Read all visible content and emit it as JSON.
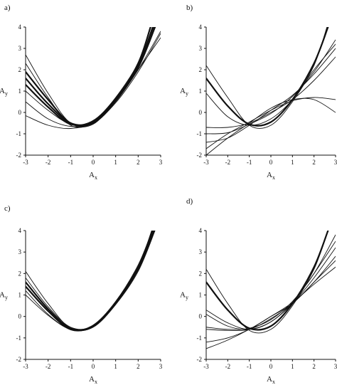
{
  "chart_data": [
    {
      "type": "line",
      "panel_label": "a)",
      "xlabel": "A",
      "xlabel_sub": "x",
      "ylabel": "A",
      "ylabel_sub": "y",
      "xlim": [
        -3,
        3
      ],
      "ylim": [
        -2,
        4
      ],
      "xticks": [
        "-3",
        "-2",
        "-1",
        "0",
        "1",
        "2",
        "3"
      ],
      "yticks": [
        "-2",
        "-1",
        "0",
        "1",
        "2",
        "3",
        "4"
      ],
      "curves": [
        {
          "bold": true,
          "points": [
            [
              -3,
              1.6
            ],
            [
              -2,
              0.4
            ],
            [
              -1,
              -0.5
            ],
            [
              0,
              -0.45
            ],
            [
              1,
              0.6
            ],
            [
              2,
              2.1
            ],
            [
              2.75,
              4.0
            ]
          ]
        },
        {
          "bold": true,
          "points": [
            [
              -3,
              1.3
            ],
            [
              -2,
              0.25
            ],
            [
              -1,
              -0.55
            ],
            [
              0,
              -0.4
            ],
            [
              1,
              0.65
            ],
            [
              2,
              2.2
            ],
            [
              2.65,
              4.0
            ]
          ]
        },
        {
          "bold": true,
          "points": [
            [
              -3,
              1.9
            ],
            [
              -2,
              0.6
            ],
            [
              -1,
              -0.5
            ],
            [
              0,
              -0.5
            ],
            [
              1,
              0.55
            ],
            [
              2,
              2.3
            ],
            [
              2.55,
              4.0
            ]
          ]
        },
        {
          "bold": false,
          "points": [
            [
              -3,
              2.7
            ],
            [
              -2,
              0.9
            ],
            [
              -1,
              -0.5
            ],
            [
              0,
              -0.55
            ],
            [
              1,
              0.6
            ],
            [
              2,
              2.2
            ],
            [
              2.7,
              4.0
            ]
          ]
        },
        {
          "bold": false,
          "points": [
            [
              -3,
              2.3
            ],
            [
              -2,
              0.7
            ],
            [
              -1,
              -0.6
            ],
            [
              0,
              -0.5
            ],
            [
              1,
              0.5
            ],
            [
              2,
              2.0
            ],
            [
              3,
              3.8
            ]
          ]
        },
        {
          "bold": false,
          "points": [
            [
              -3,
              0.5
            ],
            [
              -2,
              -0.3
            ],
            [
              -1,
              -0.65
            ],
            [
              0,
              -0.5
            ],
            [
              1,
              0.5
            ],
            [
              2,
              2.0
            ],
            [
              3,
              3.5
            ]
          ]
        },
        {
          "bold": false,
          "points": [
            [
              -3,
              -0.15
            ],
            [
              -2,
              -0.6
            ],
            [
              -1,
              -0.75
            ],
            [
              0,
              -0.45
            ],
            [
              1,
              0.7
            ],
            [
              2,
              2.3
            ],
            [
              2.7,
              4.0
            ]
          ]
        },
        {
          "bold": false,
          "points": [
            [
              -3,
              1.0
            ],
            [
              -2,
              0.1
            ],
            [
              -1,
              -0.55
            ],
            [
              0,
              -0.5
            ],
            [
              1,
              0.45
            ],
            [
              2,
              1.9
            ],
            [
              3,
              3.7
            ]
          ]
        }
      ]
    },
    {
      "type": "line",
      "panel_label": "b)",
      "xlabel": "A",
      "xlabel_sub": "x",
      "ylabel": "A",
      "ylabel_sub": "y",
      "xlim": [
        -3,
        3
      ],
      "ylim": [
        -2,
        4
      ],
      "xticks": [
        "-3",
        "-2",
        "-1",
        "0",
        "1",
        "2",
        "3"
      ],
      "yticks": [
        "-2",
        "-1",
        "0",
        "1",
        "2",
        "3",
        "4"
      ],
      "curves": [
        {
          "bold": true,
          "points": [
            [
              -3,
              1.6
            ],
            [
              -2,
              0.3
            ],
            [
              -1,
              -0.55
            ],
            [
              0,
              -0.45
            ],
            [
              1,
              0.6
            ],
            [
              2,
              2.3
            ],
            [
              2.65,
              4.0
            ]
          ]
        },
        {
          "bold": false,
          "points": [
            [
              -3,
              2.2
            ],
            [
              -2,
              0.7
            ],
            [
              -1,
              -0.6
            ],
            [
              0,
              -0.6
            ],
            [
              1,
              0.5
            ],
            [
              2,
              2.2
            ],
            [
              2.6,
              4.0
            ]
          ]
        },
        {
          "bold": false,
          "points": [
            [
              -3,
              0.9
            ],
            [
              -2,
              -0.2
            ],
            [
              -1,
              -0.6
            ],
            [
              0,
              -0.3
            ],
            [
              1,
              0.6
            ],
            [
              2,
              2.0
            ],
            [
              3,
              3.2
            ]
          ]
        },
        {
          "bold": false,
          "points": [
            [
              -3,
              -1.0
            ],
            [
              -2,
              -0.95
            ],
            [
              -1,
              -0.55
            ],
            [
              0,
              -0.05
            ],
            [
              1,
              0.75
            ],
            [
              2,
              1.9
            ],
            [
              3,
              3.4
            ]
          ]
        },
        {
          "bold": false,
          "points": [
            [
              -3,
              -1.4
            ],
            [
              -2,
              -1.2
            ],
            [
              -1,
              -0.6
            ],
            [
              0,
              0.1
            ],
            [
              1,
              0.8
            ],
            [
              2,
              1.8
            ],
            [
              3,
              3.0
            ]
          ]
        },
        {
          "bold": false,
          "points": [
            [
              -3,
              -1.7
            ],
            [
              -2,
              -1.0
            ],
            [
              -1,
              -0.45
            ],
            [
              0,
              0.1
            ],
            [
              1,
              0.55
            ],
            [
              2,
              0.7
            ],
            [
              3,
              0.6
            ]
          ]
        },
        {
          "bold": false,
          "points": [
            [
              -3,
              -2.0
            ],
            [
              -2,
              -1.2
            ],
            [
              -1,
              -0.5
            ],
            [
              0,
              0.2
            ],
            [
              1,
              0.6
            ],
            [
              2,
              0.6
            ],
            [
              3,
              0.0
            ]
          ]
        },
        {
          "bold": false,
          "points": [
            [
              -3,
              -0.7
            ],
            [
              -2,
              -0.7
            ],
            [
              -1,
              -0.5
            ],
            [
              0,
              0.0
            ],
            [
              1,
              0.6
            ],
            [
              2,
              1.5
            ],
            [
              3,
              2.6
            ]
          ]
        }
      ]
    },
    {
      "type": "line",
      "panel_label": "c)",
      "xlabel": "A",
      "xlabel_sub": "x",
      "ylabel": "A",
      "ylabel_sub": "y",
      "xlim": [
        -3,
        3
      ],
      "ylim": [
        -2,
        4
      ],
      "xticks": [
        "-3",
        "-2",
        "-1",
        "0",
        "1",
        "2",
        "3"
      ],
      "yticks": [
        "-2",
        "-1",
        "0",
        "1",
        "2",
        "3",
        "4"
      ],
      "curves": [
        {
          "bold": true,
          "points": [
            [
              -3,
              1.6
            ],
            [
              -2,
              0.35
            ],
            [
              -1,
              -0.55
            ],
            [
              0,
              -0.45
            ],
            [
              1,
              0.65
            ],
            [
              2,
              2.3
            ],
            [
              2.65,
              4.0
            ]
          ]
        },
        {
          "bold": true,
          "points": [
            [
              -3,
              1.4
            ],
            [
              -2,
              0.25
            ],
            [
              -1,
              -0.6
            ],
            [
              0,
              -0.45
            ],
            [
              1,
              0.6
            ],
            [
              2,
              2.2
            ],
            [
              2.72,
              4.0
            ]
          ]
        },
        {
          "bold": false,
          "points": [
            [
              -3,
              2.1
            ],
            [
              -2,
              0.6
            ],
            [
              -1,
              -0.55
            ],
            [
              0,
              -0.5
            ],
            [
              1,
              0.6
            ],
            [
              2,
              2.3
            ],
            [
              2.6,
              4.0
            ]
          ]
        },
        {
          "bold": false,
          "points": [
            [
              -3,
              1.2
            ],
            [
              -2,
              0.1
            ],
            [
              -1,
              -0.6
            ],
            [
              0,
              -0.4
            ],
            [
              1,
              0.7
            ],
            [
              2,
              2.4
            ],
            [
              2.62,
              4.0
            ]
          ]
        },
        {
          "bold": false,
          "points": [
            [
              -3,
              1.8
            ],
            [
              -2,
              0.45
            ],
            [
              -1,
              -0.5
            ],
            [
              0,
              -0.45
            ],
            [
              1,
              0.6
            ],
            [
              2,
              2.2
            ],
            [
              2.7,
              4.0
            ]
          ]
        },
        {
          "bold": false,
          "points": [
            [
              -3,
              1.0
            ],
            [
              -2,
              0.05
            ],
            [
              -1,
              -0.6
            ],
            [
              0,
              -0.5
            ],
            [
              1,
              0.55
            ],
            [
              2,
              2.1
            ],
            [
              2.75,
              4.0
            ]
          ]
        }
      ]
    },
    {
      "type": "line",
      "panel_label": "d)",
      "xlabel": "A",
      "xlabel_sub": "x",
      "ylabel": "A",
      "ylabel_sub": "y",
      "xlim": [
        -3,
        3
      ],
      "ylim": [
        -2,
        4
      ],
      "xticks": [
        "-3",
        "-2",
        "-1",
        "0",
        "1",
        "2",
        "3"
      ],
      "yticks": [
        "-2",
        "-1",
        "0",
        "1",
        "2",
        "3",
        "4"
      ],
      "curves": [
        {
          "bold": true,
          "points": [
            [
              -3,
              1.6
            ],
            [
              -2,
              0.3
            ],
            [
              -1,
              -0.55
            ],
            [
              0,
              -0.45
            ],
            [
              1,
              0.6
            ],
            [
              2,
              2.3
            ],
            [
              2.65,
              4.0
            ]
          ]
        },
        {
          "bold": false,
          "points": [
            [
              -3,
              2.2
            ],
            [
              -2,
              0.6
            ],
            [
              -1,
              -0.65
            ],
            [
              0,
              -0.6
            ],
            [
              1,
              0.5
            ],
            [
              2,
              2.2
            ],
            [
              2.65,
              4.0
            ]
          ]
        },
        {
          "bold": false,
          "points": [
            [
              -3,
              0.3
            ],
            [
              -2,
              -0.3
            ],
            [
              -1,
              -0.6
            ],
            [
              0,
              -0.25
            ],
            [
              1,
              0.65
            ],
            [
              2,
              2.0
            ],
            [
              3,
              3.5
            ]
          ]
        },
        {
          "bold": false,
          "points": [
            [
              -3,
              0.1
            ],
            [
              -2,
              -0.45
            ],
            [
              -1,
              -0.6
            ],
            [
              0,
              -0.25
            ],
            [
              1,
              0.6
            ],
            [
              2,
              1.8
            ],
            [
              3,
              3.2
            ]
          ]
        },
        {
          "bold": false,
          "points": [
            [
              -3,
              -0.5
            ],
            [
              -2,
              -0.6
            ],
            [
              -1,
              -0.55
            ],
            [
              0,
              -0.15
            ],
            [
              1,
              0.7
            ],
            [
              2,
              2.0
            ],
            [
              3,
              3.8
            ]
          ]
        },
        {
          "bold": false,
          "points": [
            [
              -3,
              -0.6
            ],
            [
              -2,
              -0.65
            ],
            [
              -1,
              -0.6
            ],
            [
              0,
              -0.1
            ],
            [
              1,
              0.6
            ],
            [
              2,
              1.6
            ],
            [
              3,
              2.8
            ]
          ]
        },
        {
          "bold": false,
          "points": [
            [
              -3,
              -1.2
            ],
            [
              -2,
              -1.0
            ],
            [
              -1,
              -0.6
            ],
            [
              0,
              0.0
            ],
            [
              1,
              0.65
            ],
            [
              2,
              1.5
            ],
            [
              3,
              2.3
            ]
          ]
        },
        {
          "bold": false,
          "points": [
            [
              -3,
              -1.5
            ],
            [
              -2,
              -1.1
            ],
            [
              -1,
              -0.6
            ],
            [
              0,
              0.0
            ],
            [
              1,
              0.6
            ],
            [
              2,
              1.6
            ],
            [
              3,
              2.6
            ]
          ]
        }
      ]
    }
  ]
}
